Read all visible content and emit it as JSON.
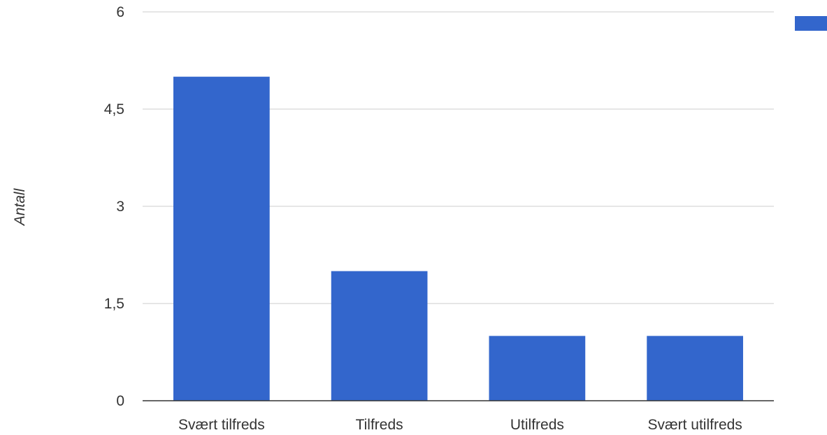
{
  "chart_data": {
    "type": "bar",
    "categories": [
      "Svært tilfreds",
      "Tilfreds",
      "Utilfreds",
      "Svært utilfreds"
    ],
    "values": [
      5,
      2,
      1,
      1
    ],
    "ylabel": "Antall",
    "ylim": [
      0,
      6
    ],
    "yticks": [
      0,
      1.5,
      3,
      4.5,
      6
    ],
    "ytick_labels": [
      "0",
      "1,5",
      "3",
      "4,5",
      "6"
    ],
    "grid": true,
    "legend": {
      "position": "top-right",
      "entries": [
        ""
      ]
    },
    "colors": {
      "bar": "#3366cc",
      "grid": "#cccccc",
      "axis": "#333333"
    }
  }
}
